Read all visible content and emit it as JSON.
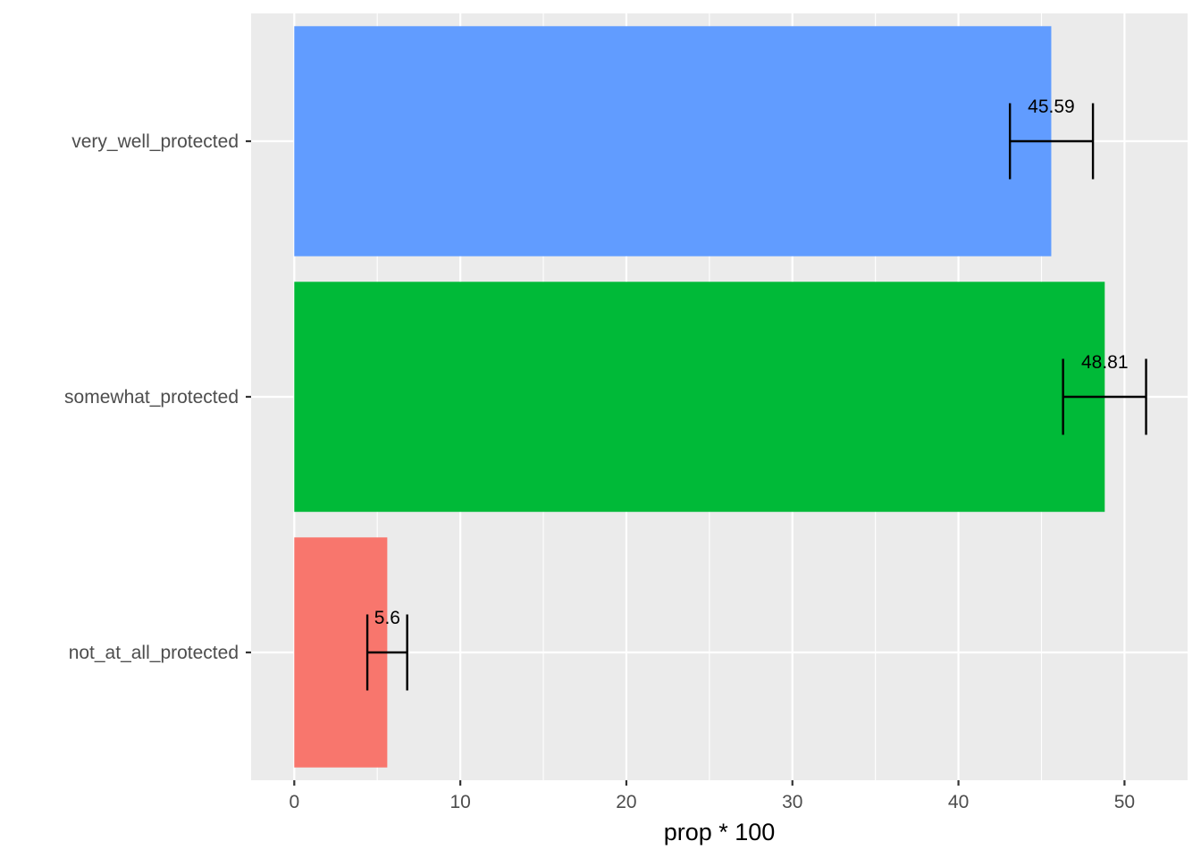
{
  "chart_data": {
    "type": "bar",
    "orientation": "horizontal",
    "categories": [
      "not_at_all_protected",
      "somewhat_protected",
      "very_well_protected"
    ],
    "values": [
      5.6,
      48.81,
      45.59
    ],
    "value_labels": [
      "5.6",
      "48.81",
      "45.59"
    ],
    "error_bars": [
      {
        "low": 4.4,
        "high": 6.8
      },
      {
        "low": 46.3,
        "high": 51.3
      },
      {
        "low": 43.1,
        "high": 48.1
      }
    ],
    "colors": [
      "#F8766D",
      "#00BA38",
      "#619CFF"
    ],
    "xlabel": "prop * 100",
    "ylabel": "",
    "title": "",
    "xlim": [
      -2.6,
      53.8
    ],
    "xticks": [
      0,
      10,
      20,
      30,
      40,
      50
    ],
    "xtick_labels": [
      "0",
      "10",
      "20",
      "30",
      "40",
      "50"
    ],
    "grid": true,
    "legend": "none",
    "panel_background": "#EBEBEB",
    "gridline_color": "#FFFFFF"
  }
}
